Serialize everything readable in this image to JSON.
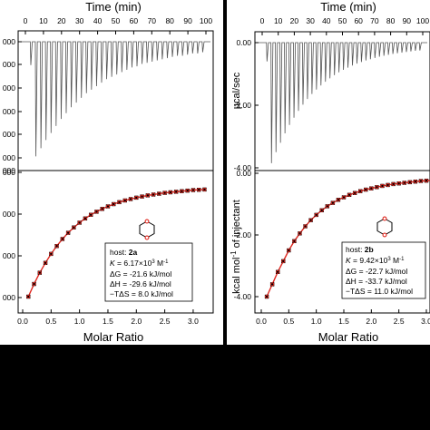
{
  "chart_data": [
    {
      "type": "line",
      "panel": "left-top",
      "title": "",
      "xlabel": "Time (min)",
      "ylabel": "",
      "x_ticks": [
        "0",
        "10",
        "20",
        "30",
        "40",
        "50",
        "60",
        "70",
        "80",
        "90",
        "100"
      ],
      "y_ticks": [
        "000",
        "000",
        "000",
        "000",
        "000",
        "000",
        "000"
      ],
      "xlim": [
        0,
        100
      ],
      "baseline": 0,
      "series": [
        {
          "x": [
            3,
            5.8,
            8.6,
            11.4,
            14.2,
            17,
            19.8,
            22.6,
            25.4,
            28.2,
            31,
            33.8,
            36.6,
            39.4,
            42.2,
            45,
            47.8,
            50.6,
            53.4,
            56.2,
            59,
            61.8,
            64.6,
            67.4,
            70.2,
            73,
            75.8,
            78.6,
            81.4,
            84.2,
            87,
            89.8,
            92.6,
            95.4,
            98.2
          ],
          "values": [
            0.2,
            0.98,
            0.91,
            0.84,
            0.78,
            0.72,
            0.66,
            0.61,
            0.56,
            0.52,
            0.48,
            0.44,
            0.41,
            0.38,
            0.35,
            0.32,
            0.3,
            0.28,
            0.26,
            0.24,
            0.22,
            0.21,
            0.19,
            0.18,
            0.17,
            0.16,
            0.15,
            0.14,
            0.13,
            0.12,
            0.12,
            0.11,
            0.1,
            0.1,
            0.09
          ]
        }
      ]
    },
    {
      "type": "scatter",
      "panel": "left-bottom",
      "xlabel": "Molar Ratio",
      "ylabel": "",
      "x_ticks": [
        "0.0",
        "0.5",
        "1.0",
        "1.5",
        "2.0",
        "2.5",
        "3.0"
      ],
      "y_ticks": [
        "000",
        "000",
        "000",
        "000"
      ],
      "xlim": [
        0,
        3.4
      ],
      "series": [
        {
          "name": "data",
          "x": [
            0.1,
            0.2,
            0.3,
            0.4,
            0.5,
            0.6,
            0.7,
            0.8,
            0.9,
            1.0,
            1.1,
            1.2,
            1.3,
            1.4,
            1.5,
            1.6,
            1.7,
            1.8,
            1.9,
            2.0,
            2.1,
            2.2,
            2.3,
            2.4,
            2.5,
            2.6,
            2.7,
            2.8,
            2.9,
            3.0,
            3.1,
            3.2
          ],
          "values": [
            -4.0,
            -3.55,
            -3.15,
            -2.8,
            -2.48,
            -2.2,
            -1.95,
            -1.73,
            -1.54,
            -1.37,
            -1.22,
            -1.09,
            -0.98,
            -0.88,
            -0.79,
            -0.71,
            -0.64,
            -0.58,
            -0.53,
            -0.48,
            -0.44,
            -0.4,
            -0.37,
            -0.34,
            -0.31,
            -0.29,
            -0.27,
            -0.25,
            -0.23,
            -0.21,
            -0.2,
            -0.19
          ]
        }
      ],
      "legend": {
        "host_label": "host: ",
        "host_id": "2a",
        "k_label": "K",
        "k_value": " = 6.17×10",
        "k_exp": "3",
        "k_unit": " M",
        "k_unit_exp": "-1",
        "dG": "ΔG = -21.6 kJ/mol",
        "dH": "ΔH = -29.6 kJ/mol",
        "TdS": "−TΔS = 8.0 kJ/mol"
      }
    },
    {
      "type": "line",
      "panel": "right-top",
      "xlabel": "Time (min)",
      "ylabel": "µcal/sec",
      "x_ticks": [
        "0",
        "10",
        "20",
        "30",
        "40",
        "50",
        "60",
        "70",
        "80",
        "90",
        "100"
      ],
      "y_ticks": [
        "0.00",
        "-2.00",
        "-4.00"
      ],
      "xlim": [
        0,
        100
      ],
      "ylim": [
        -4.0,
        0.2
      ],
      "baseline": 0,
      "series": [
        {
          "x": [
            3,
            5.8,
            8.6,
            11.4,
            14.2,
            17,
            19.8,
            22.6,
            25.4,
            28.2,
            31,
            33.8,
            36.6,
            39.4,
            42.2,
            45,
            47.8,
            50.6,
            53.4,
            56.2,
            59,
            61.8,
            64.6,
            67.4,
            70.2,
            73,
            75.8,
            78.6,
            81.4,
            84.2,
            87,
            89.8,
            92.6,
            95.4,
            98.2
          ],
          "values": [
            -0.6,
            -3.85,
            -3.5,
            -3.2,
            -2.9,
            -2.63,
            -2.4,
            -2.18,
            -1.98,
            -1.8,
            -1.64,
            -1.5,
            -1.37,
            -1.25,
            -1.14,
            -1.04,
            -0.95,
            -0.87,
            -0.8,
            -0.73,
            -0.67,
            -0.62,
            -0.57,
            -0.53,
            -0.49,
            -0.45,
            -0.42,
            -0.39,
            -0.36,
            -0.34,
            -0.32,
            -0.3,
            -0.28,
            -0.26,
            -0.25
          ]
        }
      ]
    },
    {
      "type": "scatter",
      "panel": "right-bottom",
      "xlabel": "Molar Ratio",
      "ylabel_pre": "kcal mol",
      "ylabel_exp": "-1",
      "ylabel_post": " of injectant",
      "x_ticks": [
        "0.0",
        "0.5",
        "1.0",
        "1.5",
        "2.0",
        "2.5",
        "3.0"
      ],
      "y_ticks": [
        "0.00",
        "-2.00",
        "-4.00"
      ],
      "xlim": [
        -0.05,
        3.2
      ],
      "ylim": [
        -4.35,
        0.05
      ],
      "series": [
        {
          "name": "data",
          "x": [
            0.1,
            0.2,
            0.3,
            0.4,
            0.5,
            0.6,
            0.7,
            0.8,
            0.9,
            1.0,
            1.1,
            1.2,
            1.3,
            1.4,
            1.5,
            1.6,
            1.7,
            1.8,
            1.9,
            2.0,
            2.1,
            2.2,
            2.3,
            2.4,
            2.5,
            2.6,
            2.7,
            2.8,
            2.9,
            3.0,
            3.1
          ],
          "values": [
            -4.0,
            -3.6,
            -3.2,
            -2.85,
            -2.5,
            -2.2,
            -1.95,
            -1.72,
            -1.52,
            -1.35,
            -1.2,
            -1.07,
            -0.96,
            -0.86,
            -0.78,
            -0.7,
            -0.64,
            -0.58,
            -0.53,
            -0.49,
            -0.45,
            -0.41,
            -0.38,
            -0.35,
            -0.33,
            -0.31,
            -0.29,
            -0.27,
            -0.25,
            -0.24,
            -0.23
          ]
        }
      ],
      "legend": {
        "host_label": "host: ",
        "host_id": "2b",
        "k_label": "K",
        "k_value": " = 9.42×10",
        "k_exp": "3",
        "k_unit": " M",
        "k_unit_exp": "-1",
        "dG": "ΔG = -22.7 kJ/mol",
        "dH": "ΔH = -33.7 kJ/mol",
        "TdS": "−TΔS = 11.0 kJ/mol"
      }
    }
  ],
  "colors": {
    "trace": "#555555",
    "marker": "#000000",
    "marker_face": "#e0271f",
    "fit": "#e0271f",
    "background": "#000000",
    "panel": "#ffffff"
  }
}
